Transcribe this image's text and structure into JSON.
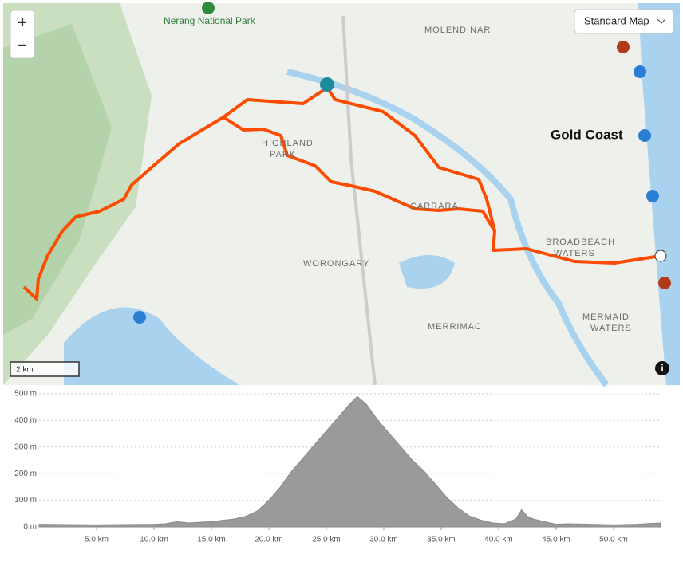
{
  "map": {
    "map_style": "Standard Map",
    "zoom_in": "+",
    "zoom_out": "−",
    "scale": "2 km",
    "labels": [
      {
        "lines": [
          "Nerang National Park"
        ]
      },
      {
        "lines": [
          "MOLENDINAR"
        ]
      },
      {
        "lines": [
          "Gold Coast"
        ]
      },
      {
        "lines": [
          "HIGHLAND",
          "PARK"
        ]
      },
      {
        "lines": [
          "CARRARA"
        ]
      },
      {
        "lines": [
          "BROADBEACH",
          "WATERS"
        ]
      },
      {
        "lines": [
          "WORONGARY"
        ]
      },
      {
        "lines": [
          "MERRIMAC"
        ]
      },
      {
        "lines": [
          "MERMAID",
          "WATERS"
        ]
      }
    ]
  },
  "chart_data": {
    "type": "area",
    "color": "#9a9a9a",
    "x": [
      0,
      5,
      10,
      11,
      12,
      13,
      15,
      16,
      17,
      18,
      19,
      20,
      21,
      22,
      23,
      24,
      25,
      26,
      27,
      27.7,
      28.5,
      29.5,
      30.5,
      31.5,
      32.5,
      33.5,
      34.5,
      35.5,
      36.5,
      37.5,
      38.5,
      39.5,
      40.5,
      41.5,
      42,
      42.5,
      43,
      44,
      45,
      46,
      48,
      50,
      52,
      54.1
    ],
    "values": [
      10,
      8,
      10,
      12,
      20,
      15,
      20,
      25,
      30,
      40,
      60,
      100,
      150,
      210,
      260,
      310,
      360,
      410,
      460,
      490,
      460,
      400,
      350,
      300,
      250,
      210,
      160,
      110,
      70,
      40,
      25,
      15,
      12,
      30,
      65,
      40,
      30,
      20,
      10,
      12,
      10,
      8,
      10,
      15
    ],
    "xlim": [
      0,
      54.1
    ],
    "ylim": [
      0,
      500
    ],
    "xticks": [
      {
        "value": 5,
        "label": "5.0 km"
      },
      {
        "value": 10,
        "label": "10.0 km"
      },
      {
        "value": 15,
        "label": "15.0 km"
      },
      {
        "value": 20,
        "label": "20.0 km"
      },
      {
        "value": 25,
        "label": "25.0 km"
      },
      {
        "value": 30,
        "label": "30.0 km"
      },
      {
        "value": 35,
        "label": "35.0 km"
      },
      {
        "value": 40,
        "label": "40.0 km"
      },
      {
        "value": 45,
        "label": "45.0 km"
      },
      {
        "value": 50,
        "label": "50.0 km"
      }
    ],
    "yticks": [
      {
        "value": 0,
        "label": "0 m"
      },
      {
        "value": 100,
        "label": "100 m"
      },
      {
        "value": 200,
        "label": "200 m"
      },
      {
        "value": 300,
        "label": "300 m"
      },
      {
        "value": 400,
        "label": "400 m"
      },
      {
        "value": 500,
        "label": "500 m"
      }
    ],
    "grid": true
  }
}
